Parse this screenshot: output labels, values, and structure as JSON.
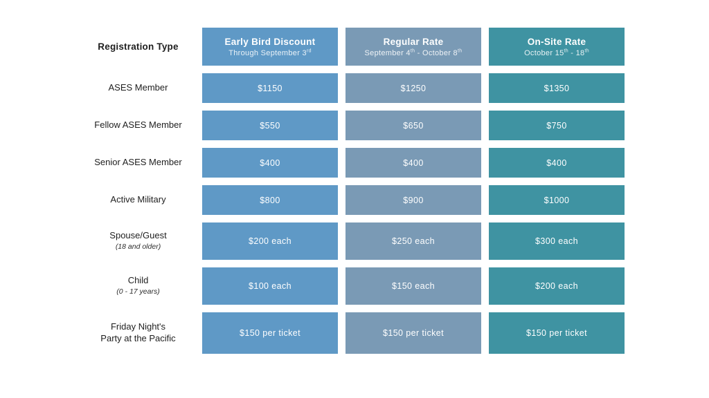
{
  "page": {
    "background": "#ffffff",
    "text_color": "#1e1e1e"
  },
  "table": {
    "corner_label": "Registration Type",
    "columns": [
      {
        "id": "early-bird",
        "title": "Early Bird Discount",
        "subtitle_segments": [
          {
            "text": "Through September 3"
          },
          {
            "text": "rd",
            "sup": true
          }
        ],
        "color": "#5f99c6"
      },
      {
        "id": "regular",
        "title": "Regular Rate",
        "subtitle_segments": [
          {
            "text": "September 4"
          },
          {
            "text": "th",
            "sup": true
          },
          {
            "text": " - October 8"
          },
          {
            "text": "th",
            "sup": true
          }
        ],
        "color": "#7a9ab5"
      },
      {
        "id": "on-site",
        "title": "On-Site Rate",
        "subtitle_segments": [
          {
            "text": "October 15"
          },
          {
            "text": "th",
            "sup": true
          },
          {
            "text": " - 18"
          },
          {
            "text": "th",
            "sup": true
          }
        ],
        "color": "#3f93a2"
      }
    ],
    "rows": [
      {
        "label": "ASES Member",
        "label2": "",
        "sublabel": "",
        "values": [
          "$1150",
          "$1250",
          "$1350"
        ]
      },
      {
        "label": "Fellow ASES Member",
        "label2": "",
        "sublabel": "",
        "values": [
          "$550",
          "$650",
          "$750"
        ]
      },
      {
        "label": "Senior ASES Member",
        "label2": "",
        "sublabel": "",
        "values": [
          "$400",
          "$400",
          "$400"
        ]
      },
      {
        "label": "Active Military",
        "label2": "",
        "sublabel": "",
        "values": [
          "$800",
          "$900",
          "$1000"
        ]
      },
      {
        "label": "Spouse/Guest",
        "label2": "",
        "sublabel": "(18 and older)",
        "values": [
          "$200 each",
          "$250 each",
          "$300 each"
        ]
      },
      {
        "label": "Child",
        "label2": "",
        "sublabel": "(0 - 17 years)",
        "values": [
          "$100 each",
          "$150 each",
          "$200 each"
        ]
      },
      {
        "label": "Friday Night's",
        "label2": "Party at the Pacific",
        "sublabel": "",
        "values": [
          "$150 per ticket",
          "$150 per ticket",
          "$150 per ticket"
        ]
      }
    ]
  }
}
